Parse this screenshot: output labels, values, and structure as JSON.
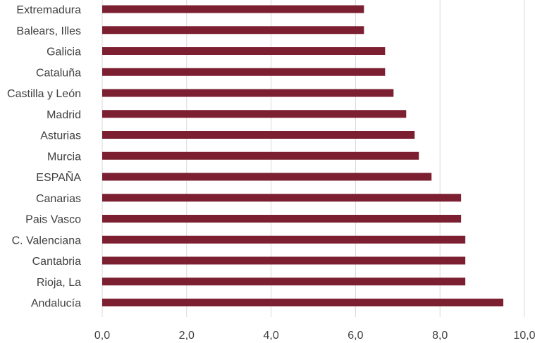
{
  "chart_data": {
    "type": "bar",
    "orientation": "horizontal",
    "categories": [
      "Extremadura",
      "Balears, Illes",
      "Galicia",
      "Cataluña",
      "Castilla y León",
      "Madrid",
      "Asturias",
      "Murcia",
      "ESPAÑA",
      "Canarias",
      "Pais Vasco",
      "C. Valenciana",
      "Cantabria",
      "Rioja, La",
      "Andalucía"
    ],
    "values": [
      6.2,
      6.2,
      6.7,
      6.7,
      6.9,
      7.2,
      7.4,
      7.5,
      7.8,
      8.5,
      8.5,
      8.6,
      8.6,
      8.6,
      9.5
    ],
    "xlim": [
      0,
      10
    ],
    "xticks": [
      "0,0",
      "2,0",
      "4,0",
      "6,0",
      "8,0",
      "10,0"
    ],
    "grid": "vertical",
    "bar_color": "#7b1f31",
    "grid_color": "#d9d9d9"
  }
}
